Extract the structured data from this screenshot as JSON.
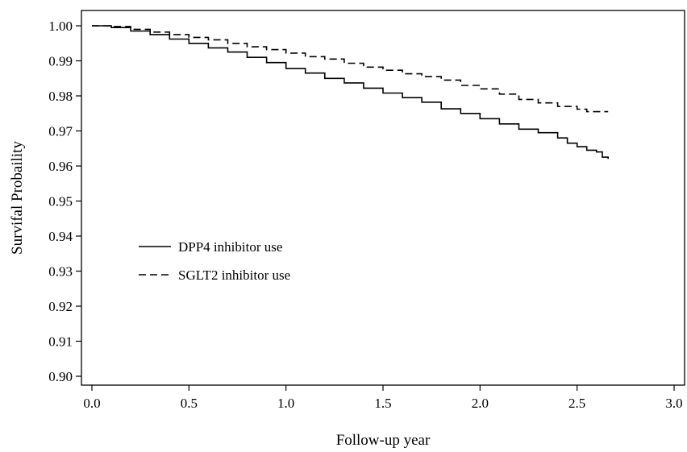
{
  "chart_data": {
    "type": "line",
    "title": "",
    "xlabel": "Follow-up year",
    "ylabel": "Survifal Probaility",
    "xlim": [
      0.0,
      3.0
    ],
    "ylim": [
      0.9,
      1.0
    ],
    "x_ticks": [
      "0.0",
      "0.5",
      "1.0",
      "1.5",
      "2.0",
      "2.5",
      "3.0"
    ],
    "y_ticks": [
      "0.90",
      "0.91",
      "0.92",
      "0.93",
      "0.94",
      "0.95",
      "0.96",
      "0.97",
      "0.98",
      "0.99",
      "1.00"
    ],
    "grid": false,
    "legend_position": "middle-left",
    "series": [
      {
        "name": "DPP4 inhibitor use",
        "line_style": "solid",
        "color": "#000000",
        "x": [
          0.0,
          0.05,
          0.1,
          0.2,
          0.3,
          0.4,
          0.5,
          0.6,
          0.7,
          0.8,
          0.9,
          1.0,
          1.1,
          1.2,
          1.3,
          1.4,
          1.5,
          1.6,
          1.7,
          1.8,
          1.9,
          2.0,
          2.1,
          2.2,
          2.3,
          2.4,
          2.45,
          2.5,
          2.55,
          2.6,
          2.63,
          2.66
        ],
        "values": [
          1.0,
          1.0,
          0.9995,
          0.9985,
          0.9975,
          0.9962,
          0.995,
          0.9937,
          0.9925,
          0.991,
          0.9895,
          0.9878,
          0.9865,
          0.985,
          0.9837,
          0.9822,
          0.9808,
          0.9795,
          0.9782,
          0.9763,
          0.975,
          0.9735,
          0.972,
          0.9705,
          0.9695,
          0.968,
          0.9665,
          0.9655,
          0.9645,
          0.964,
          0.9625,
          0.962
        ]
      },
      {
        "name": "SGLT2 inhibitor use",
        "line_style": "dashed",
        "color": "#000000",
        "x": [
          0.0,
          0.1,
          0.2,
          0.3,
          0.4,
          0.5,
          0.6,
          0.7,
          0.8,
          0.9,
          1.0,
          1.1,
          1.2,
          1.3,
          1.4,
          1.5,
          1.6,
          1.7,
          1.8,
          1.9,
          2.0,
          2.1,
          2.2,
          2.3,
          2.4,
          2.5,
          2.55,
          2.66
        ],
        "values": [
          1.0,
          0.9998,
          0.999,
          0.9982,
          0.9975,
          0.9967,
          0.996,
          0.995,
          0.994,
          0.9932,
          0.9922,
          0.9912,
          0.9905,
          0.9893,
          0.9882,
          0.9873,
          0.9863,
          0.9855,
          0.9845,
          0.983,
          0.982,
          0.9805,
          0.979,
          0.978,
          0.977,
          0.9762,
          0.9755,
          0.9755
        ]
      }
    ]
  }
}
